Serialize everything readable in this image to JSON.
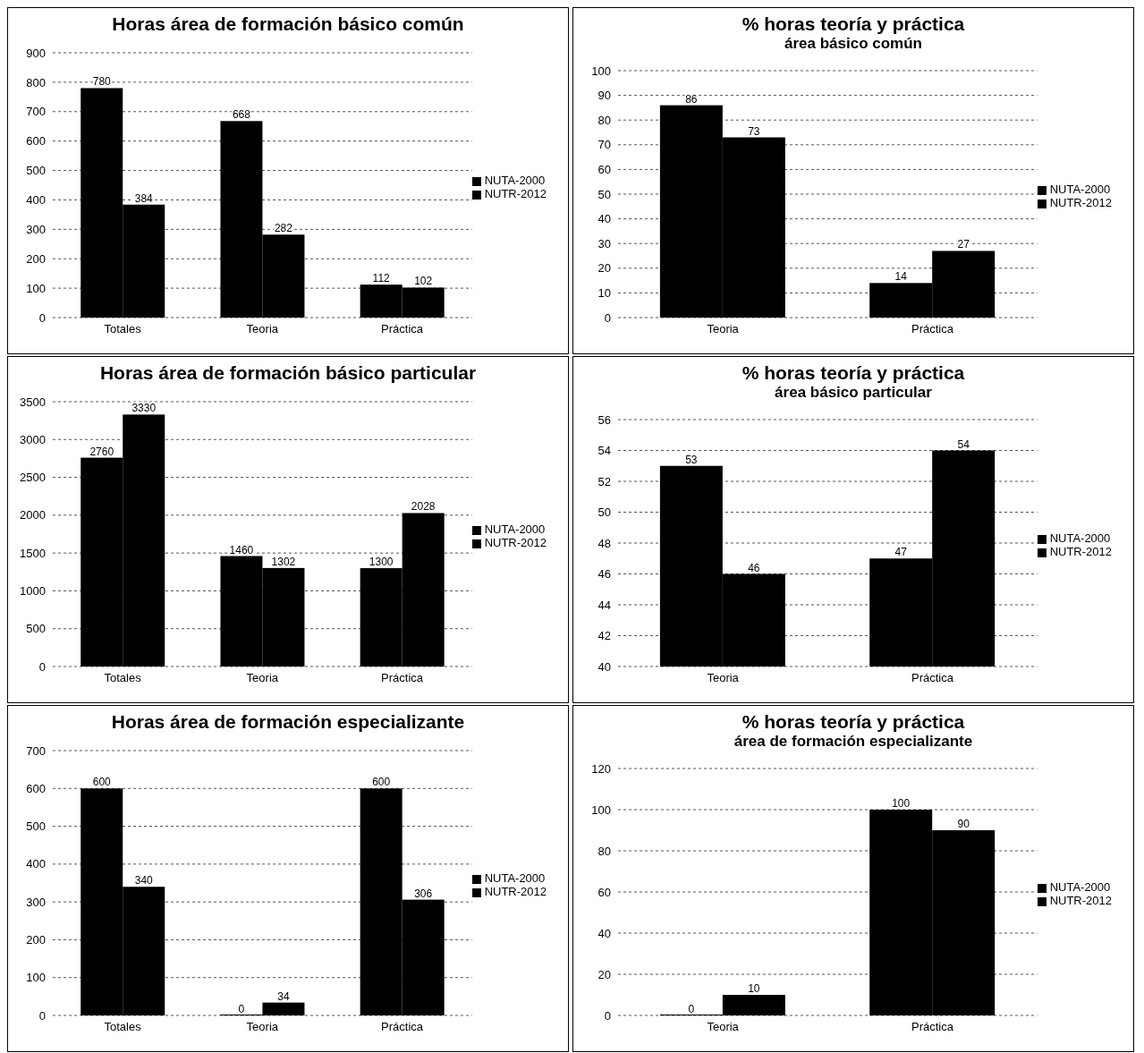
{
  "chart_data": [
    {
      "type": "bar",
      "title": "Horas área de formación básico común",
      "categories": [
        "Totales",
        "Teoria",
        "Práctica"
      ],
      "series": [
        {
          "name": "NUTA-2000",
          "color": "#000000",
          "values": [
            780,
            668,
            112
          ]
        },
        {
          "name": "NUTR-2012",
          "color": "#000000",
          "values": [
            384,
            282,
            102
          ]
        }
      ],
      "ylim": [
        0,
        900
      ],
      "yticks": [
        0,
        100,
        200,
        300,
        400,
        500,
        600,
        700,
        800,
        900
      ],
      "grid": "y",
      "legend": "right",
      "data_labels": true
    },
    {
      "type": "bar",
      "title": "% horas teoría y práctica",
      "subtitle": "área básico común",
      "categories": [
        "Teoria",
        "Práctica"
      ],
      "series": [
        {
          "name": "NUTA-2000",
          "color": "#000000",
          "values": [
            86,
            14
          ]
        },
        {
          "name": "NUTR-2012",
          "color": "#000000",
          "values": [
            73,
            27
          ]
        }
      ],
      "ylim": [
        0,
        100
      ],
      "yticks": [
        0,
        10,
        20,
        30,
        40,
        50,
        60,
        70,
        80,
        90,
        100
      ],
      "grid": "y",
      "legend": "right",
      "data_labels": true
    },
    {
      "type": "bar",
      "title": "Horas área de formación básico particular",
      "categories": [
        "Totales",
        "Teoria",
        "Práctica"
      ],
      "series": [
        {
          "name": "NUTA-2000",
          "color": "#000000",
          "values": [
            2760,
            1460,
            1300
          ]
        },
        {
          "name": "NUTR-2012",
          "color": "#000000",
          "values": [
            3330,
            1302,
            2028
          ]
        }
      ],
      "ylim": [
        0,
        3500
      ],
      "yticks": [
        0,
        500,
        1000,
        1500,
        2000,
        2500,
        3000,
        3500
      ],
      "grid": "y",
      "legend": "right",
      "data_labels": true
    },
    {
      "type": "bar",
      "title": "% horas teoría y práctica",
      "subtitle": "área básico particular",
      "categories": [
        "Teoria",
        "Práctica"
      ],
      "series": [
        {
          "name": "NUTA-2000",
          "color": "#000000",
          "values": [
            53,
            47
          ]
        },
        {
          "name": "NUTR-2012",
          "color": "#000000",
          "values": [
            46,
            54
          ]
        }
      ],
      "ylim": [
        40,
        56
      ],
      "yticks": [
        40,
        42,
        44,
        46,
        48,
        50,
        52,
        54,
        56
      ],
      "grid": "y",
      "legend": "right",
      "data_labels": true
    },
    {
      "type": "bar",
      "title": "Horas área de formación especializante",
      "categories": [
        "Totales",
        "Teoria",
        "Práctica"
      ],
      "series": [
        {
          "name": "NUTA-2000",
          "color": "#000000",
          "values": [
            600,
            0,
            600
          ]
        },
        {
          "name": "NUTR-2012",
          "color": "#000000",
          "values": [
            340,
            34,
            306
          ]
        }
      ],
      "ylim": [
        0,
        700
      ],
      "yticks": [
        0,
        100,
        200,
        300,
        400,
        500,
        600,
        700
      ],
      "grid": "y",
      "legend": "right",
      "data_labels": true
    },
    {
      "type": "bar",
      "title": "% horas teoría y práctica",
      "subtitle": "área de formación especializante",
      "categories": [
        "Teoria",
        "Práctica"
      ],
      "series": [
        {
          "name": "NUTA-2000",
          "color": "#000000",
          "values": [
            0,
            100
          ]
        },
        {
          "name": "NUTR-2012",
          "color": "#000000",
          "values": [
            10,
            90
          ]
        }
      ],
      "ylim": [
        0,
        120
      ],
      "yticks": [
        0,
        20,
        40,
        60,
        80,
        100,
        120
      ],
      "grid": "y",
      "legend": "right",
      "data_labels": true
    }
  ]
}
